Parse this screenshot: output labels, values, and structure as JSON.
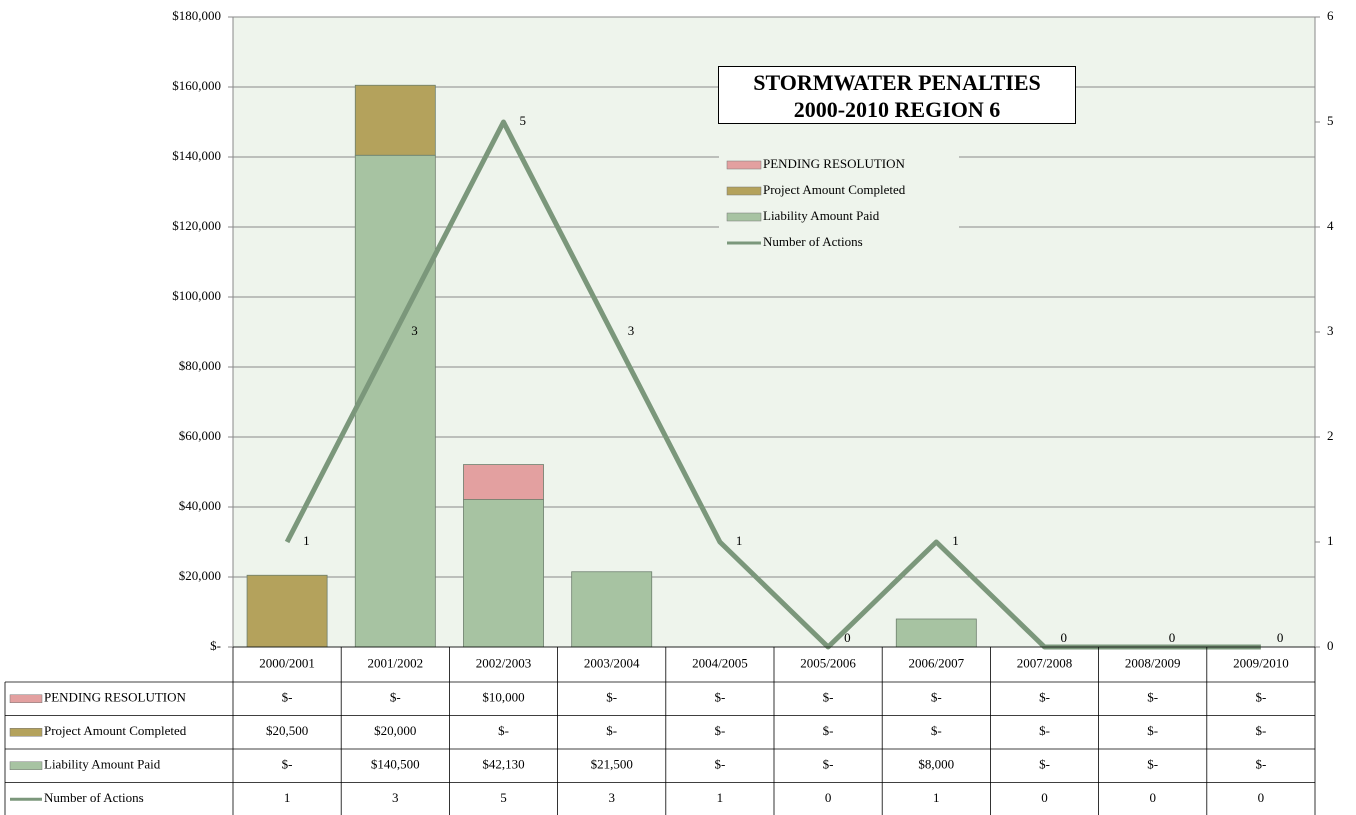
{
  "chart_data": {
    "type": "bar",
    "title": "STORMWATER PENALTIES 2000-2010 REGION 6",
    "categories": [
      "2000/2001",
      "2001/2002",
      "2002/2003",
      "2003/2004",
      "2004/2005",
      "2005/2006",
      "2006/2007",
      "2007/2008",
      "2008/2009",
      "2009/2010"
    ],
    "series": [
      {
        "name": "PENDING RESOLUTION",
        "type": "bar",
        "color": "#e3a0a0",
        "values": [
          0,
          0,
          10000,
          0,
          0,
          0,
          0,
          0,
          0,
          0
        ],
        "value_labels": [
          "$-",
          "$-",
          "$10,000",
          "$-",
          "$-",
          "$-",
          "$-",
          "$-",
          "$-",
          "$-"
        ]
      },
      {
        "name": "Project Amount Completed",
        "type": "bar",
        "color": "#b4a25c",
        "values": [
          20500,
          20000,
          0,
          0,
          0,
          0,
          0,
          0,
          0,
          0
        ],
        "value_labels": [
          "$20,500",
          "$20,000",
          "$-",
          "$-",
          "$-",
          "$-",
          "$-",
          "$-",
          "$-",
          "$-"
        ]
      },
      {
        "name": "Liability Amount Paid",
        "type": "bar",
        "color": "#a7c3a2",
        "values": [
          0,
          140500,
          42130,
          21500,
          0,
          0,
          8000,
          0,
          0,
          0
        ],
        "value_labels": [
          "$-",
          "$140,500",
          "$42,130",
          "$21,500",
          "$-",
          "$-",
          "$8,000",
          "$-",
          "$-",
          "$-"
        ]
      },
      {
        "name": "Number of Actions",
        "type": "line",
        "axis": "y2",
        "color": "#7b977b",
        "values": [
          1,
          3,
          5,
          3,
          1,
          0,
          1,
          0,
          0,
          0
        ]
      }
    ],
    "ylim": [
      0,
      180000
    ],
    "yticks": [
      {
        "value": 0,
        "label": "$-"
      },
      {
        "value": 20000,
        "label": "$20,000"
      },
      {
        "value": 40000,
        "label": "$40,000"
      },
      {
        "value": 60000,
        "label": "$60,000"
      },
      {
        "value": 80000,
        "label": "$80,000"
      },
      {
        "value": 100000,
        "label": "$100,000"
      },
      {
        "value": 120000,
        "label": "$120,000"
      },
      {
        "value": 140000,
        "label": "$140,000"
      },
      {
        "value": 160000,
        "label": "$160,000"
      },
      {
        "value": 180000,
        "label": "$180,000"
      }
    ],
    "y2lim": [
      0,
      6
    ],
    "y2ticks": [
      0,
      1,
      2,
      3,
      4,
      5,
      6
    ],
    "grid": true,
    "stacked": true
  }
}
